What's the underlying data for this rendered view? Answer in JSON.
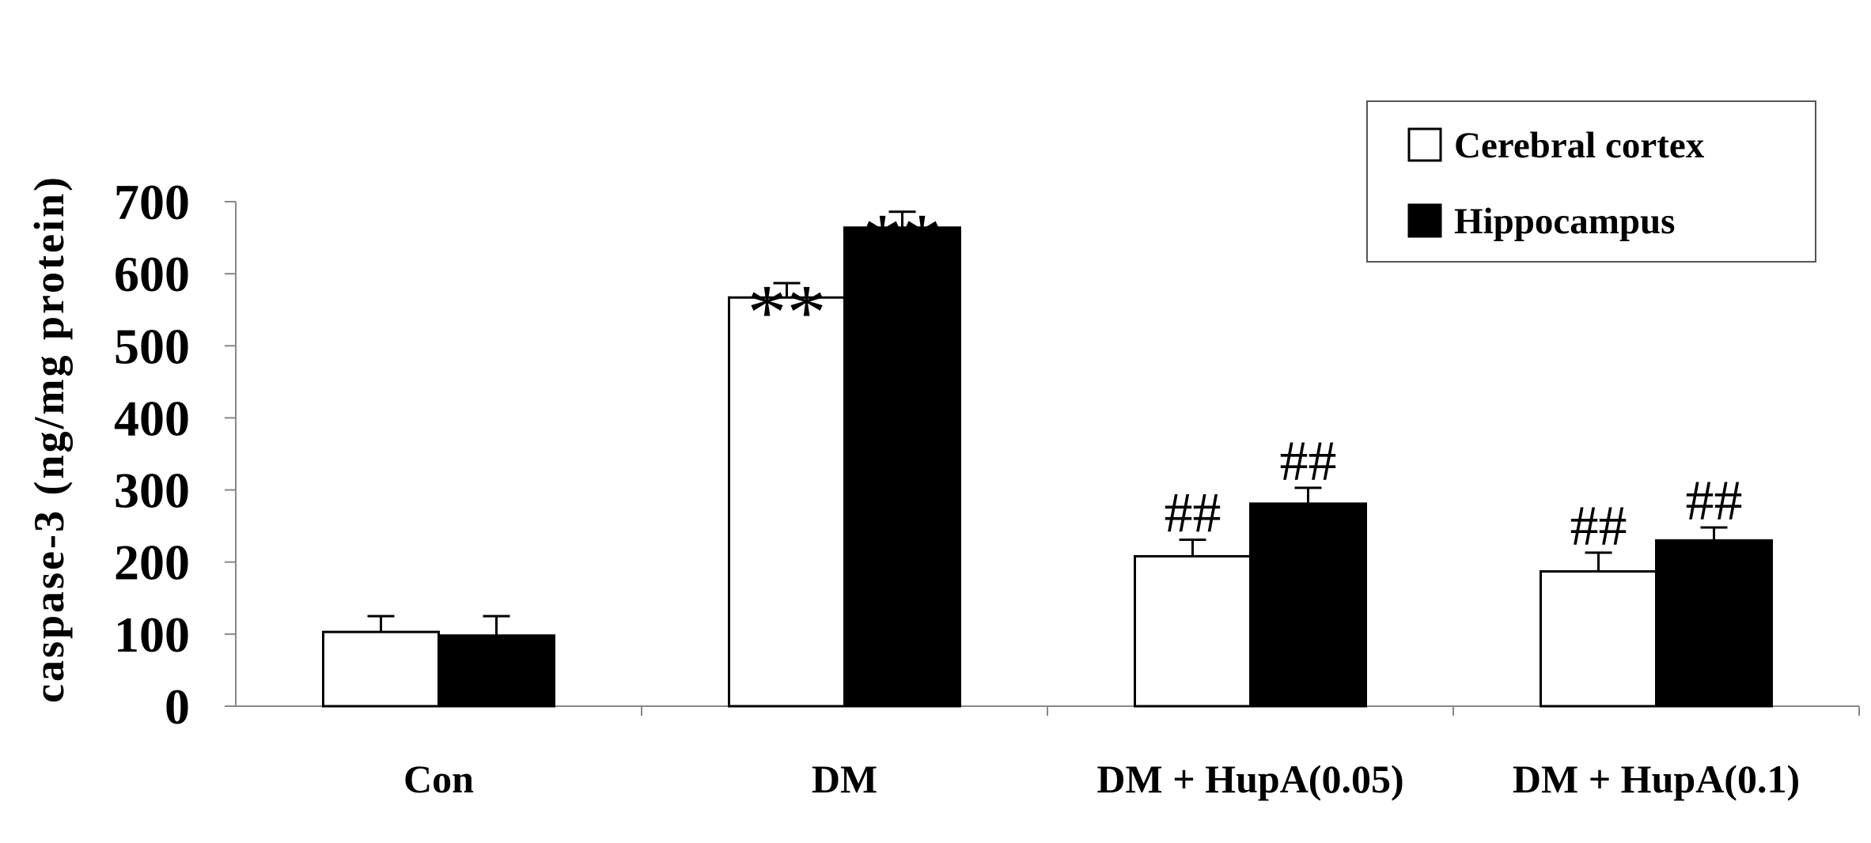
{
  "chart_data": {
    "type": "bar",
    "ylabel": "caspase-3  (ng/mg protein)",
    "xlabel": "",
    "ylim": [
      0,
      700
    ],
    "yticks": [
      "0",
      "100",
      "200",
      "300",
      "400",
      "500",
      "600",
      "700"
    ],
    "categories": [
      "Con",
      "DM",
      "DM + HupA(0.05)",
      "DM + HupA(0.1)"
    ],
    "series": [
      {
        "name": "Cerebral cortex",
        "color": "#ffffff",
        "values": [
          103,
          567,
          208,
          187
        ],
        "errors": [
          22,
          20,
          23,
          26
        ],
        "annotations": [
          "",
          "**",
          "##",
          "##"
        ]
      },
      {
        "name": "Hippocampus",
        "color": "#000000",
        "values": [
          98,
          664,
          281,
          230
        ],
        "errors": [
          27,
          22,
          22,
          18
        ],
        "annotations": [
          "",
          "**",
          "##",
          "##"
        ]
      }
    ],
    "legend": "top-right",
    "grid": false
  }
}
